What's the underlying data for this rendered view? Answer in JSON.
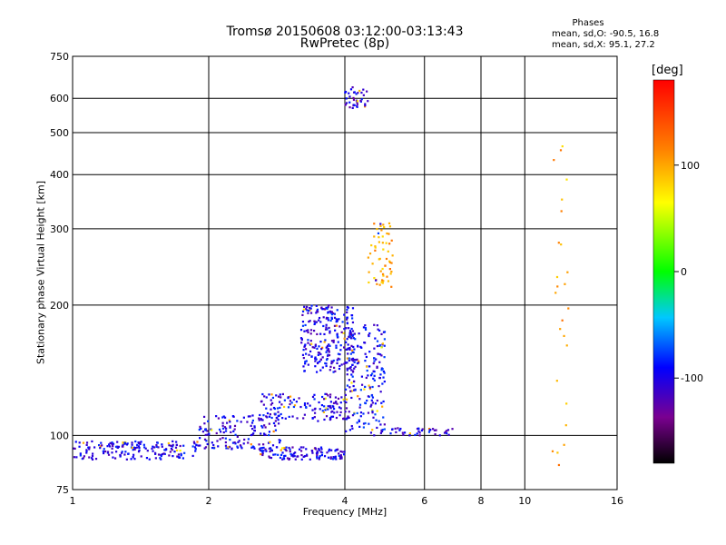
{
  "chart_data": {
    "type": "scatter",
    "title": "Tromsø 20150608 03:12:00-03:13:43",
    "subtitle": "RwPretec (8p)",
    "xlabel": "Frequency [MHz]",
    "ylabel": "Stationary phase Virtual Height [km]",
    "x_scale": "log",
    "y_scale": "log",
    "xlim": [
      1,
      16
    ],
    "ylim": [
      75,
      750
    ],
    "x_ticks": [
      1,
      2,
      4,
      6,
      8,
      10,
      16
    ],
    "y_ticks": [
      75,
      100,
      200,
      300,
      400,
      500,
      600,
      750
    ],
    "grid": true,
    "color_label": "[deg]",
    "color_range": [
      -180,
      180
    ],
    "color_ticks": [
      100,
      0,
      -100
    ],
    "phases_box": {
      "title": "Phases",
      "o_line": "mean, sd,O: -90.5, 16.8",
      "x_line": "mean, sd,X:  95.1, 27.2"
    },
    "points_clusters": [
      {
        "f": [
          1.0,
          1.9
        ],
        "h": [
          88,
          97
        ],
        "n": 180,
        "phase": -100
      },
      {
        "f": [
          1.9,
          2.9
        ],
        "h": [
          93,
          112
        ],
        "n": 150,
        "phase": -100
      },
      {
        "f": [
          2.6,
          4.0
        ],
        "h": [
          88,
          94
        ],
        "n": 120,
        "phase": -100
      },
      {
        "f": [
          2.6,
          4.0
        ],
        "h": [
          108,
          125
        ],
        "n": 130,
        "phase": -100
      },
      {
        "f": [
          3.2,
          4.2
        ],
        "h": [
          140,
          200
        ],
        "n": 260,
        "phase": -100
      },
      {
        "f": [
          4.0,
          4.9
        ],
        "h": [
          100,
          180
        ],
        "n": 200,
        "phase": -95
      },
      {
        "f": [
          4.0,
          4.5
        ],
        "h": [
          570,
          640
        ],
        "n": 40,
        "phase": -105
      },
      {
        "f": [
          4.5,
          5.1
        ],
        "h": [
          220,
          310
        ],
        "n": 60,
        "phase": 100
      },
      {
        "f": [
          5.0,
          7.0
        ],
        "h": [
          100,
          104
        ],
        "n": 40,
        "phase": -100
      },
      {
        "f": [
          11.5,
          12.5
        ],
        "h": [
          85,
          520
        ],
        "n": 25,
        "phase": 100
      }
    ]
  }
}
